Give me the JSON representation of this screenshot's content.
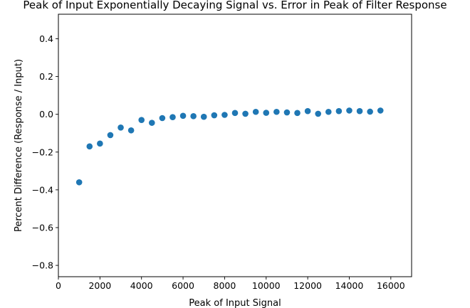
{
  "chart_data": {
    "type": "scatter",
    "title": "Peak of Input Exponentially Decaying Signal vs. Error in Peak of Filter Response",
    "xlabel": "Peak of Input Signal",
    "ylabel": "Percent Difference (Response / Input)",
    "xlim": [
      0,
      17000
    ],
    "ylim": [
      -0.86,
      0.53
    ],
    "xticks": [
      0,
      2000,
      4000,
      6000,
      8000,
      10000,
      12000,
      14000,
      16000
    ],
    "yticks": [
      -0.8,
      -0.6,
      -0.4,
      -0.2,
      0.0,
      0.2,
      0.4
    ],
    "ytick_labels": [
      "−0.8",
      "−0.6",
      "−0.4",
      "−0.2",
      "0.0",
      "0.2",
      "0.4"
    ],
    "grid": false,
    "marker_color": "#1f77b4",
    "series": [
      {
        "x": [
          1000,
          1500,
          2000,
          2500,
          3000,
          3500,
          4000,
          4500,
          5000,
          5500,
          6000,
          6500,
          7000,
          7500,
          8000,
          8500,
          9000,
          9500,
          10000,
          10500,
          11000,
          11500,
          12000,
          12500,
          13000,
          13500,
          14000,
          14500,
          15000,
          15500
        ],
        "y": [
          -0.36,
          -0.17,
          -0.155,
          -0.11,
          -0.07,
          -0.085,
          -0.03,
          -0.045,
          -0.02,
          -0.015,
          -0.008,
          -0.01,
          -0.013,
          -0.005,
          -0.003,
          0.007,
          0.003,
          0.013,
          0.008,
          0.013,
          0.01,
          0.007,
          0.017,
          0.003,
          0.013,
          0.017,
          0.02,
          0.017,
          0.014,
          0.02
        ]
      }
    ]
  }
}
